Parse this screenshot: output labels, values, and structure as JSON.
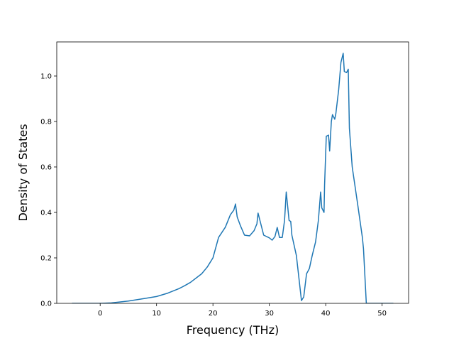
{
  "chart_data": {
    "type": "line",
    "xlabel": "Frequency (THz)",
    "ylabel": "Density of States",
    "series": [
      {
        "color": "#1f77b4",
        "x": [
          -5,
          0,
          2,
          5,
          8,
          10,
          12,
          14,
          15,
          16,
          18,
          19,
          20,
          21,
          22.2,
          23.1,
          23.7,
          24,
          24.3,
          24.9,
          25.6,
          26.5,
          27.3,
          27.8,
          28,
          29,
          30,
          30.5,
          31,
          31.4,
          31.8,
          32.3,
          32.7,
          33,
          33.5,
          33.8,
          34,
          34.8,
          35.3,
          35.7,
          36.1,
          36.6,
          37.1,
          37.6,
          38.2,
          38.7,
          39.1,
          39.3,
          39.7,
          39.8,
          40.1,
          40.5,
          40.7,
          41,
          41.2,
          41.6,
          41.8,
          42.3,
          42.7,
          43.1,
          43.3,
          43.7,
          44,
          44.2,
          44.7,
          45.7,
          46.5,
          46.7,
          47.2,
          52
        ],
        "values": [
          0,
          0,
          0.002,
          0.01,
          0.022,
          0.03,
          0.045,
          0.065,
          0.078,
          0.092,
          0.13,
          0.16,
          0.2,
          0.29,
          0.335,
          0.39,
          0.41,
          0.437,
          0.38,
          0.34,
          0.3,
          0.297,
          0.32,
          0.35,
          0.397,
          0.3,
          0.288,
          0.278,
          0.294,
          0.334,
          0.29,
          0.29,
          0.365,
          0.49,
          0.365,
          0.36,
          0.3,
          0.21,
          0.1,
          0.012,
          0.028,
          0.13,
          0.153,
          0.21,
          0.27,
          0.365,
          0.49,
          0.42,
          0.4,
          0.52,
          0.735,
          0.74,
          0.67,
          0.8,
          0.83,
          0.81,
          0.835,
          0.94,
          1.06,
          1.1,
          1.02,
          1.015,
          1.03,
          0.77,
          0.6,
          0.43,
          0.29,
          0.24,
          0,
          0
        ]
      }
    ],
    "xlim": [
      -7.7,
      54.7
    ],
    "ylim": [
      0,
      1.15
    ],
    "xticks": [
      0,
      10,
      20,
      30,
      40,
      50
    ],
    "yticks": [
      {
        "value": 0,
        "label": "0.0"
      },
      {
        "value": 0.2,
        "label": "0.2"
      },
      {
        "value": 0.4,
        "label": "0.4"
      },
      {
        "value": 0.6,
        "label": "0.6"
      },
      {
        "value": 0.8,
        "label": "0.8"
      },
      {
        "value": 1,
        "label": "1.0"
      }
    ]
  }
}
